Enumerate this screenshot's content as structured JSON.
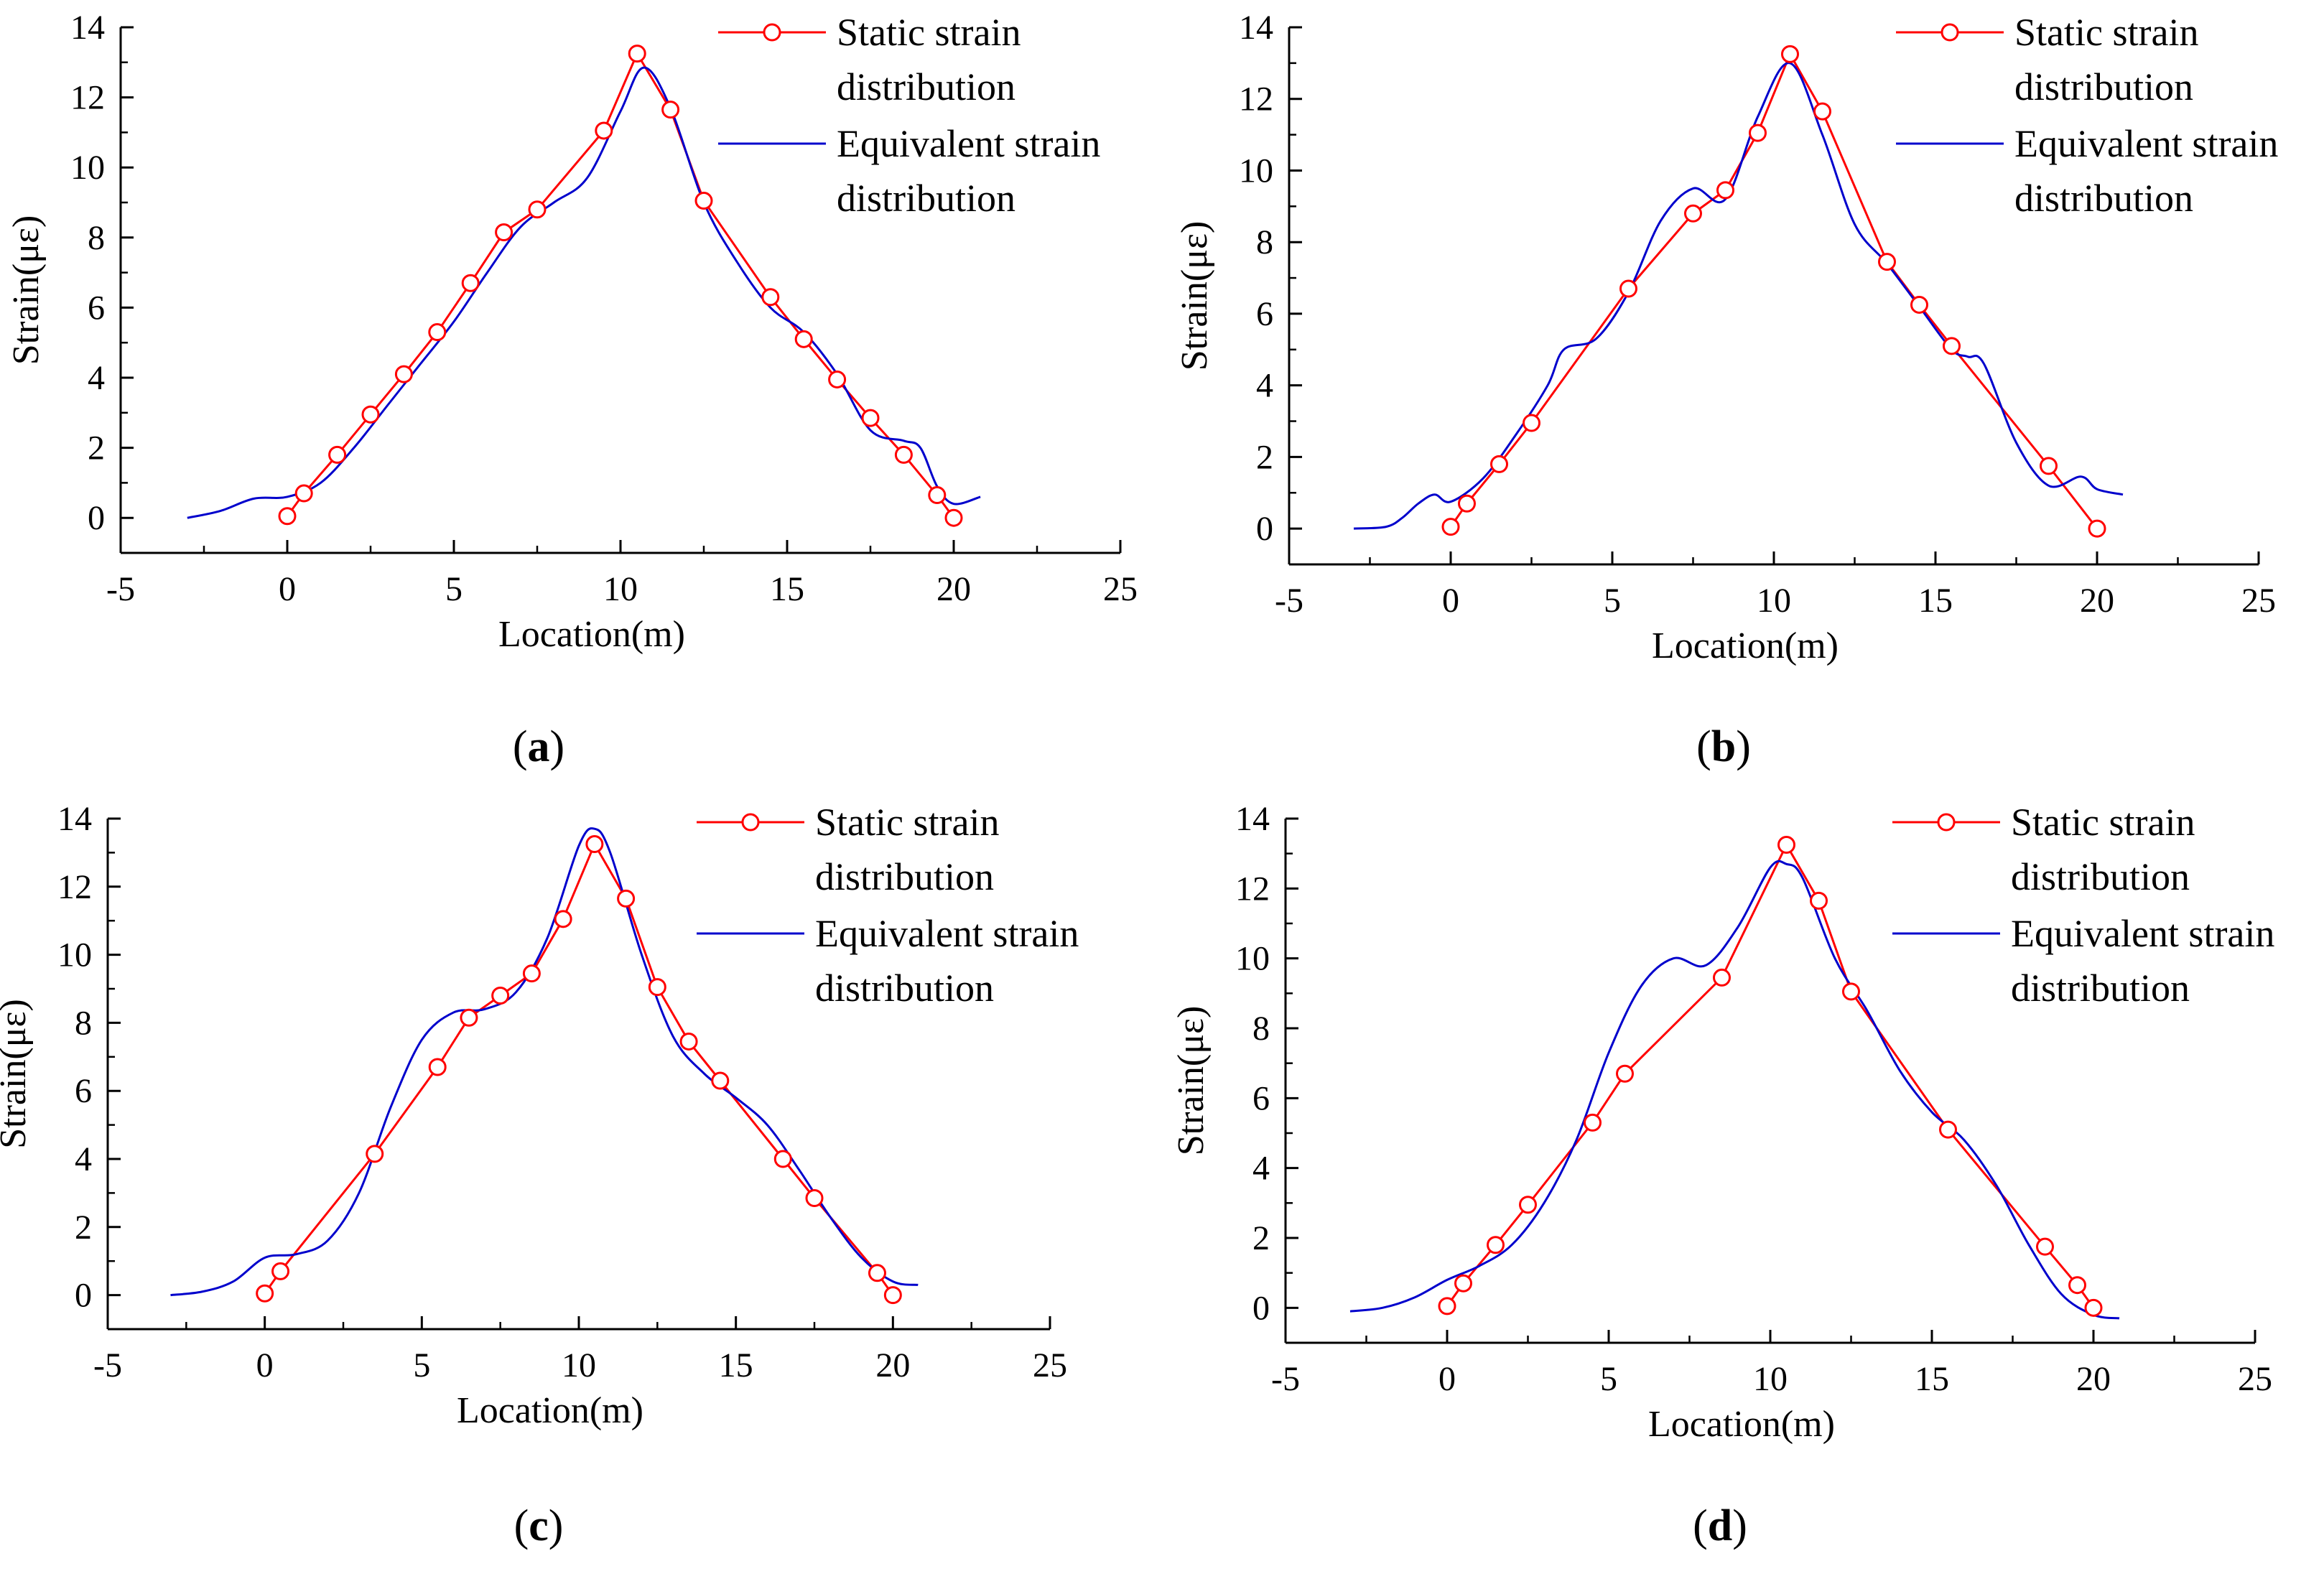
{
  "figure": {
    "legend": {
      "static_label_lines": [
        "Static strain",
        "distribution"
      ],
      "equiv_label_lines": [
        "Equivalent strain",
        "distribution"
      ]
    },
    "colors": {
      "static": "#ff0000",
      "equivalent": "#0000cc",
      "static_faint": "#ffb0b0"
    }
  },
  "chart_data": [
    {
      "type": "line",
      "panel_label": "a",
      "xlabel": "Location(m)",
      "ylabel": "Strain(με)",
      "xlim": [
        -5,
        25
      ],
      "ylim": [
        -1,
        14
      ],
      "xticks": [
        -5,
        0,
        5,
        10,
        15,
        20,
        25
      ],
      "yticks": [
        0,
        2,
        4,
        6,
        8,
        10,
        12,
        14
      ],
      "legend_position": "top-right",
      "series": [
        {
          "name": "Static strain distribution",
          "style": "line-circle",
          "x": [
            0,
            0.5,
            1.5,
            2.5,
            3.5,
            4.5,
            5.5,
            6.5,
            7.5,
            9.5,
            10.5,
            11.5,
            12.5,
            14.5,
            15.5,
            16.5,
            17.5,
            18.5,
            19.5,
            20
          ],
          "y": [
            0.05,
            0.7,
            1.8,
            2.95,
            4.1,
            5.3,
            6.7,
            8.15,
            8.8,
            11.05,
            13.25,
            11.65,
            9.05,
            6.3,
            5.1,
            3.95,
            2.85,
            1.8,
            0.65,
            0
          ]
        },
        {
          "name": "Equivalent strain distribution",
          "style": "line",
          "x": [
            -3,
            -2,
            -1,
            0,
            1,
            2,
            3,
            4,
            5,
            6,
            7,
            8,
            9,
            10,
            10.7,
            11.5,
            12.5,
            13.5,
            14.5,
            15.5,
            16.5,
            17.5,
            18.5,
            19,
            19.5,
            20,
            20.8
          ],
          "y": [
            0,
            0.2,
            0.55,
            0.6,
            1.0,
            2.0,
            3.2,
            4.4,
            5.6,
            7.0,
            8.3,
            9.0,
            9.7,
            11.6,
            12.85,
            11.7,
            9.0,
            7.3,
            6.0,
            5.3,
            4.1,
            2.5,
            2.2,
            2.0,
            0.9,
            0.4,
            0.6
          ]
        }
      ]
    },
    {
      "type": "line",
      "panel_label": "b",
      "xlabel": "Location(m)",
      "ylabel": "Strain(με)",
      "xlim": [
        -5,
        25
      ],
      "ylim": [
        -1,
        14
      ],
      "xticks": [
        -5,
        0,
        5,
        10,
        15,
        20,
        25
      ],
      "yticks": [
        0,
        2,
        4,
        6,
        8,
        10,
        12,
        14
      ],
      "legend_position": "top-right",
      "series": [
        {
          "name": "Static strain distribution",
          "style": "line-circle",
          "x": [
            0,
            0.5,
            1.5,
            2.5,
            5.5,
            7.5,
            8.5,
            9.5,
            10.5,
            11.5,
            13.5,
            14.5,
            15.5,
            18.5,
            20
          ],
          "y": [
            0.05,
            0.7,
            1.8,
            2.95,
            6.7,
            8.8,
            9.45,
            11.05,
            13.25,
            11.65,
            7.45,
            6.25,
            5.1,
            1.75,
            0
          ]
        },
        {
          "name": "Equivalent strain distribution",
          "style": "line",
          "x": [
            -3,
            -2,
            -1.5,
            -1,
            -0.5,
            0,
            1,
            2,
            3,
            3.5,
            4.5,
            5.5,
            6.5,
            7.5,
            8.5,
            9.5,
            10.5,
            11.5,
            12.5,
            13.5,
            14.5,
            15.5,
            16,
            16.5,
            17.5,
            18.5,
            19.5,
            20,
            20.8
          ],
          "y": [
            0,
            0.05,
            0.3,
            0.7,
            0.95,
            0.75,
            1.4,
            2.6,
            4.0,
            5.0,
            5.3,
            6.6,
            8.6,
            9.5,
            9.2,
            11.5,
            13.0,
            11.0,
            8.5,
            7.4,
            6.2,
            5.0,
            4.8,
            4.6,
            2.4,
            1.2,
            1.45,
            1.1,
            0.95
          ]
        }
      ]
    },
    {
      "type": "line",
      "panel_label": "c",
      "xlabel": "Location(m)",
      "ylabel": "Strain(με)",
      "xlim": [
        -5,
        25
      ],
      "ylim": [
        -1,
        14
      ],
      "xticks": [
        -5,
        0,
        5,
        10,
        15,
        20,
        25
      ],
      "yticks": [
        0,
        2,
        4,
        6,
        8,
        10,
        12,
        14
      ],
      "legend_position": "top-right",
      "series": [
        {
          "name": "Static strain distribution",
          "style": "line-circle",
          "x": [
            0,
            0.5,
            3.5,
            5.5,
            6.5,
            7.5,
            8.5,
            9.5,
            10.5,
            11.5,
            12.5,
            13.5,
            14.5,
            16.5,
            17.5,
            19.5,
            20
          ],
          "y": [
            0.05,
            0.7,
            4.15,
            6.7,
            8.15,
            8.8,
            9.45,
            11.05,
            13.25,
            11.65,
            9.05,
            7.45,
            6.3,
            4.0,
            2.85,
            0.65,
            0
          ]
        },
        {
          "name": "Equivalent strain distribution",
          "style": "line",
          "x": [
            -3,
            -2,
            -1,
            0,
            1,
            2,
            3,
            4,
            5,
            6,
            7,
            8,
            9,
            10,
            10.5,
            11,
            12,
            13,
            14,
            15,
            16,
            17,
            18,
            19,
            20,
            20.8
          ],
          "y": [
            0,
            0.1,
            0.4,
            1.1,
            1.2,
            1.6,
            3.0,
            5.5,
            7.5,
            8.3,
            8.4,
            8.9,
            10.5,
            13.2,
            13.7,
            13.0,
            10.0,
            7.6,
            6.5,
            5.8,
            5.0,
            3.7,
            2.3,
            1.1,
            0.4,
            0.3
          ]
        }
      ]
    },
    {
      "type": "line",
      "panel_label": "d",
      "xlabel": "Location(m)",
      "ylabel": "Strain(με)",
      "xlim": [
        -5,
        25
      ],
      "ylim": [
        -1,
        14
      ],
      "xticks": [
        -5,
        0,
        5,
        10,
        15,
        20,
        25
      ],
      "yticks": [
        0,
        2,
        4,
        6,
        8,
        10,
        12,
        14
      ],
      "legend_position": "top-right",
      "series": [
        {
          "name": "Static strain distribution",
          "style": "line-circle",
          "x": [
            0,
            0.5,
            1.5,
            2.5,
            4.5,
            5.5,
            8.5,
            10.5,
            11.5,
            12.5,
            15.5,
            18.5,
            19.5,
            20
          ],
          "y": [
            0.05,
            0.7,
            1.8,
            2.95,
            5.3,
            6.7,
            9.45,
            13.25,
            11.65,
            9.05,
            5.1,
            1.75,
            0.65,
            0
          ]
        },
        {
          "name": "Equivalent strain distribution",
          "style": "line",
          "x": [
            -3,
            -2,
            -1,
            0,
            1,
            2,
            3,
            4,
            5,
            6,
            7,
            8,
            9,
            10,
            10.5,
            11,
            12,
            13,
            14,
            15,
            16,
            17,
            18,
            19,
            20,
            20.8
          ],
          "y": [
            -0.1,
            0,
            0.3,
            0.8,
            1.2,
            1.8,
            3.0,
            4.8,
            7.3,
            9.2,
            10.0,
            9.8,
            10.9,
            12.6,
            12.7,
            12.3,
            10.0,
            8.5,
            6.8,
            5.6,
            4.8,
            3.5,
            1.8,
            0.4,
            -0.2,
            -0.3
          ]
        }
      ]
    }
  ]
}
